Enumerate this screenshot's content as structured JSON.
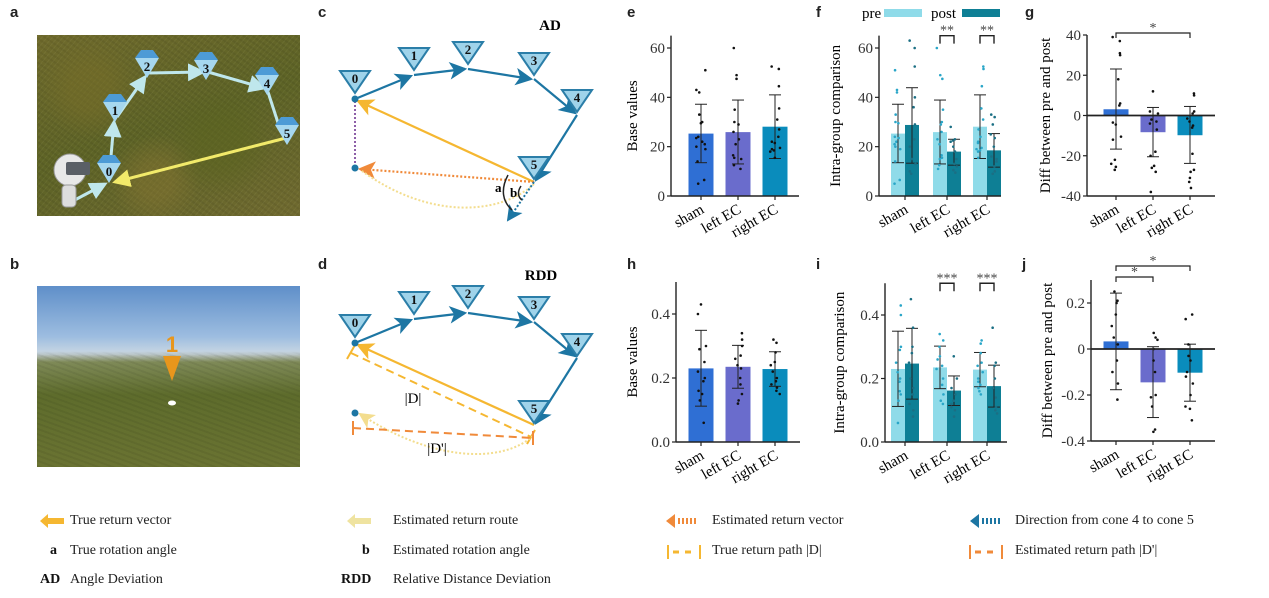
{
  "panels": {
    "a": "a",
    "b": "b",
    "c": "c",
    "d": "d",
    "e": "e",
    "f": "f",
    "g": "g",
    "h": "h",
    "i": "i",
    "j": "j"
  },
  "photo_a": {
    "cones": [
      "0",
      "1",
      "2",
      "3",
      "4",
      "5"
    ]
  },
  "photo_b": {
    "marker": "1"
  },
  "diagram_c": {
    "title": "AD",
    "nodes": [
      "0",
      "1",
      "2",
      "3",
      "4",
      "5"
    ],
    "angle_a": "a",
    "angle_b": "b"
  },
  "diagram_d": {
    "title": "RDD",
    "nodes": [
      "0",
      "1",
      "2",
      "3",
      "4",
      "5"
    ],
    "label_D": "|D|",
    "label_D_prime": "|D'|"
  },
  "colors": {
    "sham": "#2f6fd4",
    "left_ec": "#6a6ccc",
    "right_ec": "#0a8cbc",
    "pre": "#8fdbe9",
    "post": "#0e7f95",
    "true_return": "#f5b731",
    "estimated_route": "#f3dd8e",
    "estimated_vector": "#f08a3a",
    "cone_direction": "#1d76a3"
  },
  "chart_data": [
    {
      "id": "e",
      "type": "bar",
      "ylabel": "Base values",
      "categories": [
        "sham",
        "left EC",
        "right EC"
      ],
      "ylim": [
        0,
        65
      ],
      "yticks": [
        "0",
        "20",
        "40",
        "60"
      ],
      "ytick_values": [
        0,
        20,
        40,
        60
      ],
      "values": [
        25.3,
        25.9,
        28.1
      ],
      "sd": [
        [
          13.5,
          37.2
        ],
        [
          13,
          38.9
        ],
        [
          15.2,
          41
        ]
      ],
      "points": [
        [
          51,
          43,
          42,
          33,
          30,
          29.5,
          24,
          23.5,
          22,
          21,
          20,
          19,
          14,
          6.5,
          5
        ],
        [
          60,
          49,
          47.5,
          35,
          30,
          29,
          26,
          23,
          21,
          16.5,
          15.5,
          15,
          12.5,
          11
        ],
        [
          52.5,
          51.5,
          44.5,
          35.5,
          31,
          27,
          24,
          22,
          21.5,
          19.5,
          19,
          18.5,
          18,
          15.5
        ]
      ]
    },
    {
      "id": "f",
      "type": "bar",
      "ylabel": "Intra-group comparison",
      "categories": [
        "sham",
        "left EC",
        "right EC"
      ],
      "ylim": [
        0,
        65
      ],
      "yticks": [
        "0",
        "20",
        "40",
        "60"
      ],
      "ytick_values": [
        0,
        20,
        40,
        60
      ],
      "legend": [
        "pre",
        "post"
      ],
      "legend_position": "top",
      "series": [
        {
          "name": "pre",
          "values": [
            25.3,
            25.9,
            28.1
          ],
          "sd": [
            [
              13.5,
              37.2
            ],
            [
              13,
              38.9
            ],
            [
              15.2,
              41
            ]
          ],
          "points": [
            [
              51,
              43,
              42,
              33,
              30,
              29.5,
              24,
              23.5,
              22,
              21,
              20,
              19,
              14,
              6.5,
              5
            ],
            [
              60,
              49,
              47.5,
              35,
              30,
              29,
              26,
              23,
              21,
              16.5,
              15.5,
              15,
              12.5,
              11
            ],
            [
              52.5,
              51.5,
              44.5,
              35.5,
              31,
              27,
              24,
              22,
              21.5,
              19.5,
              19,
              18.5,
              18,
              15.5
            ]
          ]
        },
        {
          "name": "post",
          "values": [
            28.8,
            18,
            18.5
          ],
          "sd": [
            [
              13.3,
              43.9
            ],
            [
              12.5,
              23
            ],
            [
              11.7,
              25.3
            ]
          ],
          "points": [
            [
              63,
              60,
              52.5,
              40,
              36,
              29,
              23,
              20,
              15,
              13,
              10,
              9
            ],
            [
              28,
              23,
              22.5,
              22,
              20,
              18,
              15,
              13,
              12,
              10.5,
              9.5
            ],
            [
              33,
              32,
              29,
              25,
              23.5,
              20,
              16,
              15,
              14,
              12,
              10,
              9
            ]
          ]
        }
      ],
      "significance": [
        {
          "category": "left EC",
          "label": "**"
        },
        {
          "category": "right EC",
          "label": "**"
        }
      ]
    },
    {
      "id": "g",
      "type": "bar",
      "ylabel": "Diff between pre and post",
      "categories": [
        "sham",
        "left EC",
        "right EC"
      ],
      "ylim": [
        -40,
        40
      ],
      "yticks": [
        "-40",
        "-20",
        "0",
        "20",
        "40"
      ],
      "ytick_values": [
        -40,
        -20,
        0,
        20,
        40
      ],
      "values": [
        3.1,
        -8.3,
        -9.8
      ],
      "sd": [
        [
          -16.7,
          23.1
        ],
        [
          -20.5,
          4
        ],
        [
          -23.8,
          4.5
        ]
      ],
      "points": [
        [
          39,
          37,
          31,
          30,
          18,
          6,
          5,
          -3.5,
          -4.5,
          -10.5,
          -12,
          -22,
          -24,
          -25.5,
          -27
        ],
        [
          12,
          2,
          1,
          -2,
          -3,
          -4,
          -7,
          -18,
          -20,
          -25,
          -26,
          -28,
          -38
        ],
        [
          11,
          10,
          2,
          1,
          -1.5,
          -3,
          -5,
          -6,
          -19,
          -27,
          -28,
          -31,
          -33,
          -36
        ]
      ],
      "significance": [
        {
          "from": "sham",
          "to": "right EC",
          "label": "*"
        }
      ]
    },
    {
      "id": "h",
      "type": "bar",
      "ylabel": "Base values",
      "categories": [
        "sham",
        "left EC",
        "right EC"
      ],
      "ylim": [
        0,
        0.5
      ],
      "yticks": [
        "0.0",
        "0.2",
        "0.4"
      ],
      "ytick_values": [
        0,
        0.2,
        0.4
      ],
      "values": [
        0.23,
        0.235,
        0.228
      ],
      "sd": [
        [
          0.112,
          0.349
        ],
        [
          0.168,
          0.302
        ],
        [
          0.174,
          0.282
        ]
      ],
      "points": [
        [
          0.43,
          0.4,
          0.3,
          0.29,
          0.25,
          0.22,
          0.2,
          0.19,
          0.16,
          0.15,
          0.13,
          0.06
        ],
        [
          0.34,
          0.32,
          0.3,
          0.27,
          0.26,
          0.24,
          0.23,
          0.2,
          0.18,
          0.15,
          0.13,
          0.12
        ],
        [
          0.32,
          0.31,
          0.28,
          0.25,
          0.24,
          0.22,
          0.2,
          0.19,
          0.18,
          0.17,
          0.16,
          0.15
        ]
      ]
    },
    {
      "id": "i",
      "type": "bar",
      "ylabel": "Intra-group comparison",
      "categories": [
        "sham",
        "left EC",
        "right EC"
      ],
      "ylim": [
        0,
        0.5
      ],
      "yticks": [
        "0.0",
        "0.2",
        "0.4"
      ],
      "ytick_values": [
        0,
        0.2,
        0.4
      ],
      "series": [
        {
          "name": "pre",
          "values": [
            0.23,
            0.235,
            0.228
          ],
          "sd": [
            [
              0.112,
              0.349
            ],
            [
              0.168,
              0.302
            ],
            [
              0.174,
              0.282
            ]
          ],
          "points": [
            [
              0.43,
              0.4,
              0.3,
              0.29,
              0.25,
              0.22,
              0.2,
              0.19,
              0.16,
              0.15,
              0.13,
              0.06
            ],
            [
              0.34,
              0.32,
              0.3,
              0.27,
              0.26,
              0.24,
              0.23,
              0.2,
              0.18,
              0.15,
              0.13,
              0.12
            ],
            [
              0.32,
              0.31,
              0.28,
              0.25,
              0.24,
              0.22,
              0.2,
              0.19,
              0.18,
              0.17,
              0.16,
              0.15
            ]
          ]
        },
        {
          "name": "post",
          "values": [
            0.247,
            0.162,
            0.176
          ],
          "sd": [
            [
              0.135,
              0.358
            ],
            [
              0.115,
              0.208
            ],
            [
              0.11,
              0.242
            ]
          ],
          "points": [
            [
              0.45,
              0.36,
              0.3,
              0.28,
              0.25,
              0.2,
              0.17,
              0.15,
              0.12,
              0.1,
              0.08
            ],
            [
              0.27,
              0.2,
              0.17,
              0.15,
              0.13,
              0.12,
              0.11,
              0.1,
              0.08
            ],
            [
              0.36,
              0.25,
              0.24,
              0.2,
              0.17,
              0.14,
              0.11,
              0.1,
              0.09
            ]
          ]
        }
      ],
      "significance": [
        {
          "category": "left EC",
          "label": "***"
        },
        {
          "category": "right EC",
          "label": "***"
        }
      ]
    },
    {
      "id": "j",
      "type": "bar",
      "ylabel": "Diff between pre and post",
      "categories": [
        "sham",
        "left EC",
        "right EC"
      ],
      "ylim": [
        -0.4,
        0.3
      ],
      "yticks": [
        "-0.4",
        "-0.2",
        "0",
        "0.2"
      ],
      "ytick_values": [
        -0.4,
        -0.2,
        0,
        0.2
      ],
      "values": [
        0.033,
        -0.145,
        -0.103
      ],
      "sd": [
        [
          -0.177,
          0.243
        ],
        [
          -0.298,
          0.01
        ],
        [
          -0.227,
          0.021
        ]
      ],
      "points": [
        [
          0.25,
          0.21,
          0.2,
          0.15,
          0.1,
          0.05,
          0.02,
          -0.05,
          -0.1,
          -0.15,
          -0.22
        ],
        [
          0.07,
          0.05,
          0.04,
          0,
          -0.05,
          -0.1,
          -0.2,
          -0.21,
          -0.25,
          -0.35,
          -0.36
        ],
        [
          0.15,
          0.13,
          0.02,
          -0.03,
          -0.05,
          -0.1,
          -0.12,
          -0.15,
          -0.2,
          -0.25,
          -0.26,
          -0.31
        ]
      ],
      "significance": [
        {
          "from": "sham",
          "to": "left EC",
          "label": "*"
        },
        {
          "from": "sham",
          "to": "right EC",
          "label": "*"
        }
      ]
    }
  ],
  "legend": {
    "true_return_vector": "True return vector",
    "estimated_return_route": "Estimated return route",
    "estimated_return_vector": "Estimated return vector",
    "direction_cone4_5": "Direction from cone 4 to cone 5",
    "a_key": "a",
    "a_text": "True rotation angle",
    "b_key": "b",
    "b_text": "Estimated rotation angle",
    "true_return_path": "True return path |D|",
    "estimated_return_path": "Estimated return path |D'|",
    "ad_key": "AD",
    "ad_text": "Angle Deviation",
    "rdd_key": "RDD",
    "rdd_text": "Relative Distance Deviation"
  }
}
